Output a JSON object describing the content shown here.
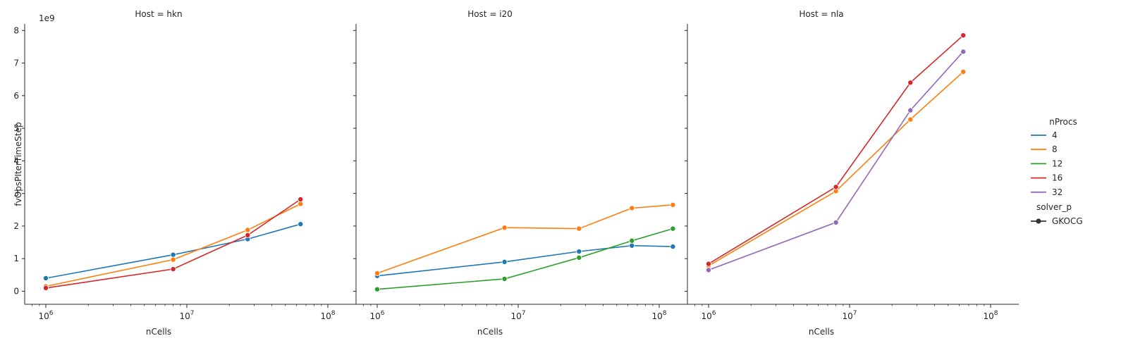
{
  "chart_data": {
    "type": "line",
    "facet_by": "Host",
    "x_label": "nCells",
    "y_label": "fvOpsPIterTimeStep",
    "y_offset_label": "1e9",
    "x_scale": "log",
    "x_ticks": [
      {
        "value": 1000000,
        "base": "10",
        "exp": "6"
      },
      {
        "value": 10000000,
        "base": "10",
        "exp": "7"
      },
      {
        "value": 100000000,
        "base": "10",
        "exp": "8"
      }
    ],
    "y_ticks": [
      "0",
      "1",
      "2",
      "3",
      "4",
      "5",
      "6",
      "7",
      "8"
    ],
    "y_range": [
      -0.4,
      8.2
    ],
    "legend": {
      "hue_title": "nProcs",
      "style_title": "solver_p",
      "hue_entries": [
        {
          "label": "4",
          "color": "#1f77b4"
        },
        {
          "label": "8",
          "color": "#ff7f0e"
        },
        {
          "label": "12",
          "color": "#2ca02c"
        },
        {
          "label": "16",
          "color": "#d62728"
        },
        {
          "label": "32",
          "color": "#9467bd"
        }
      ],
      "style_entries": [
        {
          "label": "GKOCG"
        }
      ]
    },
    "panels": [
      {
        "title": "Host = hkn",
        "series": [
          {
            "nprocs": "4",
            "color": "#1f77b4",
            "points": [
              [
                1000000,
                0.4
              ],
              [
                8000000,
                1.12
              ],
              [
                27000000,
                1.6
              ],
              [
                64000000,
                2.06
              ]
            ]
          },
          {
            "nprocs": "8",
            "color": "#ff7f0e",
            "points": [
              [
                1000000,
                0.15
              ],
              [
                8000000,
                0.97
              ],
              [
                27000000,
                1.88
              ],
              [
                64000000,
                2.68
              ]
            ]
          },
          {
            "nprocs": "16",
            "color": "#d62728",
            "points": [
              [
                1000000,
                0.1
              ],
              [
                8000000,
                0.68
              ],
              [
                27000000,
                1.72
              ],
              [
                64000000,
                2.82
              ]
            ]
          }
        ]
      },
      {
        "title": "Host = i20",
        "series": [
          {
            "nprocs": "4",
            "color": "#1f77b4",
            "points": [
              [
                1000000,
                0.47
              ],
              [
                8000000,
                0.9
              ],
              [
                27000000,
                1.22
              ],
              [
                64000000,
                1.4
              ],
              [
                125000000,
                1.37
              ]
            ]
          },
          {
            "nprocs": "8",
            "color": "#ff7f0e",
            "points": [
              [
                1000000,
                0.55
              ],
              [
                8000000,
                1.95
              ],
              [
                27000000,
                1.92
              ],
              [
                64000000,
                2.55
              ],
              [
                125000000,
                2.65
              ]
            ]
          },
          {
            "nprocs": "12",
            "color": "#2ca02c",
            "points": [
              [
                1000000,
                0.06
              ],
              [
                8000000,
                0.38
              ],
              [
                27000000,
                1.03
              ],
              [
                64000000,
                1.55
              ],
              [
                125000000,
                1.92
              ]
            ]
          }
        ]
      },
      {
        "title": "Host = nla",
        "series": [
          {
            "nprocs": "8",
            "color": "#ff7f0e",
            "points": [
              [
                1000000,
                0.78
              ],
              [
                8000000,
                3.07
              ],
              [
                27000000,
                5.27
              ],
              [
                64000000,
                6.73
              ]
            ]
          },
          {
            "nprocs": "16",
            "color": "#d62728",
            "points": [
              [
                1000000,
                0.84
              ],
              [
                8000000,
                3.2
              ],
              [
                27000000,
                6.4
              ],
              [
                64000000,
                7.85
              ]
            ]
          },
          {
            "nprocs": "32",
            "color": "#9467bd",
            "points": [
              [
                1000000,
                0.65
              ],
              [
                8000000,
                2.11
              ],
              [
                27000000,
                5.55
              ],
              [
                64000000,
                7.35
              ]
            ]
          }
        ]
      }
    ]
  }
}
